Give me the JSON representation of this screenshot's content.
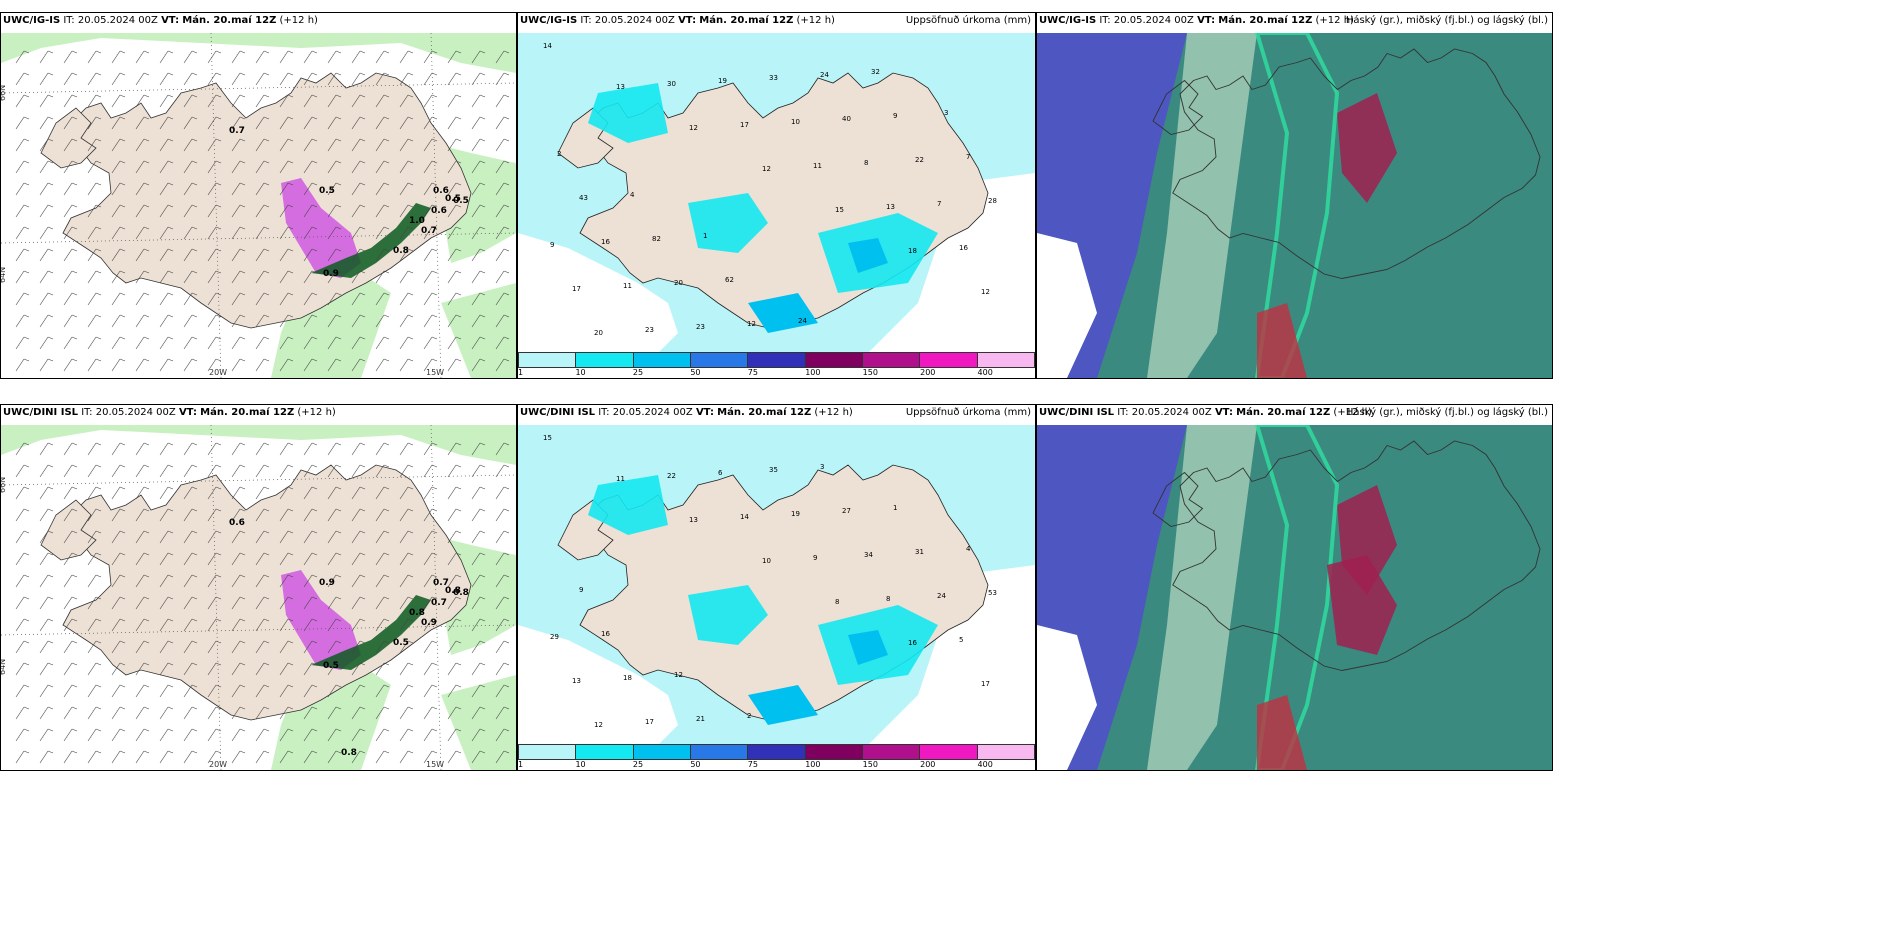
{
  "panels": {
    "p1": {
      "model": "UWC/IG-IS",
      "it": "IT: 20.05.2024 00Z",
      "vt_label": "VT:",
      "vt": "Mán. 20.maí 12Z",
      "lead": "(+12 h)",
      "right_title": ""
    },
    "p2": {
      "model": "UWC/IG-IS",
      "it": "IT: 20.05.2024 00Z",
      "vt_label": "VT:",
      "vt": "Mán. 20.maí 12Z",
      "lead": "(+12 h)",
      "right_title": "Uppsöfnuð úrkoma (mm)"
    },
    "p3": {
      "model": "UWC/IG-IS",
      "it": "IT: 20.05.2024 00Z",
      "vt_label": "VT:",
      "vt": "Mán. 20.maí 12Z",
      "lead": "(+12 h)",
      "right_title": "Háský (gr.), miðský (fj.bl.) og lágský (bl.)"
    },
    "p4": {
      "model": "UWC/DINI ISL",
      "it": "IT: 20.05.2024 00Z",
      "vt_label": "VT:",
      "vt": "Mán. 20.maí 12Z",
      "lead": "(+12 h)",
      "right_title": ""
    },
    "p5": {
      "model": "UWC/DINI ISL",
      "it": "IT: 20.05.2024 00Z",
      "vt_label": "VT:",
      "vt": "Mán. 20.maí 12Z",
      "lead": "(+12 h)",
      "right_title": "Uppsöfnuð úrkoma (mm)"
    },
    "p6": {
      "model": "UWC/DINI ISL",
      "it": "IT: 20.05.2024 00Z",
      "vt_label": "VT:",
      "vt": "Mán. 20.maí 12Z",
      "lead": "(+12 h)",
      "right_title": "Háský (gr.), miðský (fj.bl.) og lágský (bl.)"
    }
  },
  "grid_labels": {
    "lat66": "66N",
    "lat64": "64N",
    "lon20": "20W",
    "lon15": "15W"
  },
  "colorbar": {
    "ticks": [
      "1",
      "10",
      "25",
      "50",
      "75",
      "100",
      "150",
      "200",
      "400"
    ],
    "colors": [
      "#b8f4f8",
      "#14e8f0",
      "#00c0f0",
      "#2878e8",
      "#3030b8",
      "#800060",
      "#b0108c",
      "#f018c0",
      "#f8b8f0"
    ]
  },
  "wind_map_labels": {
    "top": [
      "0.7",
      "0.5",
      "0.6",
      "0.5",
      "0.9",
      "0.8",
      "1.0",
      "0.7",
      "0.5",
      "0.6"
    ],
    "bottom": [
      "0.6",
      "0.9",
      "0.7",
      "0.8",
      "0.5",
      "0.5",
      "0.8",
      "0.9",
      "0.8",
      "0.7",
      "0.8"
    ]
  },
  "precip_values": {
    "top": [
      "14",
      "13",
      "12",
      "12",
      "15",
      "18",
      "12",
      "20",
      "30",
      "17",
      "11",
      "13",
      "16",
      "17",
      "23",
      "19",
      "10",
      "8",
      "7",
      "9",
      "11",
      "23",
      "33",
      "40",
      "22",
      "28",
      "16",
      "20",
      "12",
      "24",
      "9",
      "7",
      "43",
      "82",
      "62",
      "24",
      "32",
      "3",
      "2",
      "4",
      "1"
    ],
    "bottom": [
      "15",
      "11",
      "13",
      "10",
      "8",
      "16",
      "17",
      "12",
      "22",
      "14",
      "9",
      "8",
      "5",
      "13",
      "17",
      "6",
      "19",
      "34",
      "24",
      "29",
      "18",
      "21",
      "35",
      "27",
      "31",
      "53",
      "16",
      "12",
      "2",
      "3",
      "1",
      "4",
      "9"
    ]
  },
  "colors": {
    "land": "#ede0d4",
    "sea_wind": "#ffffff",
    "precip_light": "#b8f4f8",
    "precip_mid": "#14e8f0",
    "precip_high": "#00c0f0",
    "purple": "#d060e0",
    "green_light": "#c8f0c0",
    "green_dark": "#0a5a20",
    "cloud_teal": "#3a8a80",
    "cloud_blue": "#5050c8"
  }
}
